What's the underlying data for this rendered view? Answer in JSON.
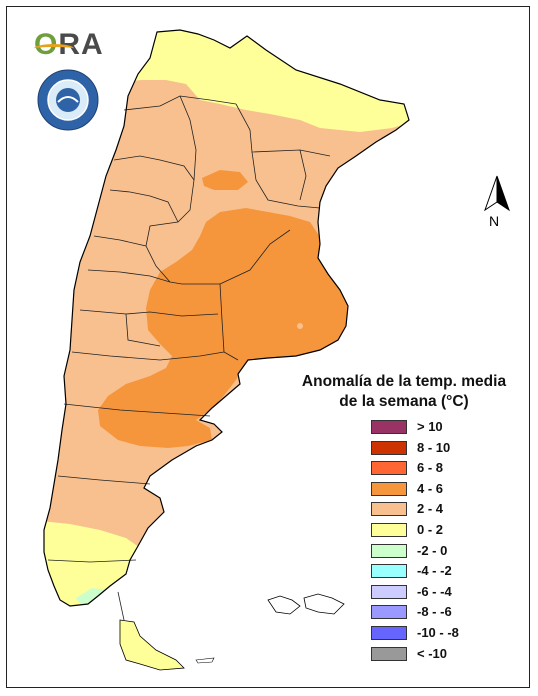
{
  "logo": {
    "text_o": "O",
    "text_rest": "RA",
    "icon": "ora-logo-icon"
  },
  "seal": {
    "icon": "smn-seal-icon"
  },
  "north_arrow": {
    "label": "N",
    "icon": "north-arrow-icon"
  },
  "legend": {
    "title_line1": "Anomalía de la temp. media",
    "title_line2": "de la semana (°C)",
    "items": [
      {
        "label": "> 10",
        "color": "#993366"
      },
      {
        "label": "8 - 10",
        "color": "#cc3300"
      },
      {
        "label": "6 - 8",
        "color": "#ff6633"
      },
      {
        "label": "4 - 6",
        "color": "#f5963d"
      },
      {
        "label": "2 - 4",
        "color": "#f8c08f"
      },
      {
        "label": "0 - 2",
        "color": "#ffff99"
      },
      {
        "label": "-2 - 0",
        "color": "#ccffcc"
      },
      {
        "label": "-4 - -2",
        "color": "#99ffff"
      },
      {
        "label": "-6 - -4",
        "color": "#ccccff"
      },
      {
        "label": "-8 - -6",
        "color": "#9999ff"
      },
      {
        "label": "-10 - -8",
        "color": "#6666ff"
      },
      {
        "label": "< -10",
        "color": "#999999"
      }
    ]
  }
}
